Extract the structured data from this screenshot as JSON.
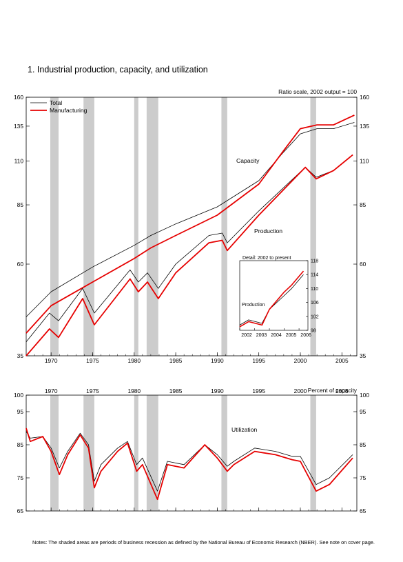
{
  "page": {
    "title": "1.  Industrial production, capacity, and utilization",
    "notes": "Notes: The shaded areas are periods of business recession as defined by the National Bureau of Economic Research (NBER). See note on cover page."
  },
  "chart_data": [
    {
      "type": "line",
      "scale": "log",
      "note": "Ratio scale, 2002 output = 100",
      "ylim": [
        35,
        160
      ],
      "yticks": [
        35,
        60,
        85,
        110,
        135,
        160
      ],
      "xlim": [
        1967.0,
        2006.8
      ],
      "xticks": [
        1970,
        1975,
        1980,
        1985,
        1990,
        1995,
        2000,
        2005
      ],
      "recessions": [
        [
          1969.9,
          1970.9
        ],
        [
          1973.9,
          1975.2
        ],
        [
          1980.0,
          1980.5
        ],
        [
          1981.5,
          1982.9
        ],
        [
          1990.5,
          1991.2
        ],
        [
          2001.2,
          2001.9
        ]
      ],
      "legend": [
        "Total",
        "Manufacturing"
      ],
      "annotations": [
        "Capacity",
        "Production"
      ],
      "colors": {
        "total": "#000000",
        "manufacturing": "#e60000",
        "recession": "#cccccc"
      },
      "series": [
        {
          "name": "Total",
          "role": "capacity",
          "x": [
            1967,
            1970,
            1975,
            1980,
            1982,
            1985,
            1990,
            1995,
            1998,
            2000,
            2002,
            2004,
            2006.5
          ],
          "y": [
            44,
            51,
            59,
            67,
            71,
            76,
            84,
            98,
            116,
            129,
            133,
            133,
            138
          ]
        },
        {
          "name": "Manufacturing",
          "role": "capacity",
          "x": [
            1967,
            1970,
            1975,
            1980,
            1982,
            1985,
            1990,
            1995,
            1998,
            2000,
            2002,
            2004,
            2006.5
          ],
          "y": [
            40,
            47,
            54,
            62,
            66,
            71,
            80,
            96,
            117,
            133,
            136,
            136,
            144
          ]
        },
        {
          "name": "Total",
          "role": "production",
          "x": [
            1967,
            1969.8,
            1970.9,
            1973.8,
            1975.2,
            1979.5,
            1980.5,
            1981.6,
            1982.9,
            1985,
            1989,
            1990.6,
            1991.2,
            1995,
            2000.6,
            2001.9,
            2004,
            2006.3
          ],
          "y": [
            38,
            45,
            43,
            52,
            45,
            58,
            54,
            57,
            52,
            60,
            71,
            72,
            68,
            82,
            106,
            100,
            104,
            114
          ]
        },
        {
          "name": "Manufacturing",
          "role": "production",
          "x": [
            1967,
            1969.8,
            1970.9,
            1973.8,
            1975.2,
            1979.5,
            1980.5,
            1981.6,
            1982.9,
            1985,
            1989,
            1990.6,
            1991.2,
            1995,
            2000.6,
            2001.9,
            2004,
            2006.3
          ],
          "y": [
            35,
            41,
            39,
            49,
            42,
            55,
            51,
            54,
            49,
            57,
            68,
            69,
            65,
            80,
            106,
            99,
            104,
            114
          ]
        }
      ]
    },
    {
      "type": "line",
      "title": "Detail: 2002 to present",
      "ylim": [
        98,
        118
      ],
      "yticks": [
        98,
        102,
        106,
        110,
        114,
        118
      ],
      "xlim": [
        2002.0,
        2006.6
      ],
      "xticks": [
        2002,
        2003,
        2004,
        2005,
        2006
      ],
      "annotations": [
        "Production"
      ],
      "series": [
        {
          "name": "Total",
          "x": [
            2002,
            2002.6,
            2003.5,
            2004,
            2005,
            2005.5,
            2006.3
          ],
          "y": [
            99.5,
            101,
            100,
            104,
            108,
            110,
            114
          ]
        },
        {
          "name": "Manufacturing",
          "x": [
            2002,
            2002.6,
            2003.5,
            2004,
            2005,
            2005.5,
            2006.3
          ],
          "y": [
            99,
            100.5,
            99.5,
            104,
            109,
            111,
            115
          ]
        }
      ]
    },
    {
      "type": "line",
      "note": "Percent of capacity",
      "ylim": [
        65,
        100
      ],
      "yticks": [
        65,
        75,
        85,
        95,
        100
      ],
      "xlim": [
        1967.0,
        2006.8
      ],
      "xticks": [
        1970,
        1975,
        1980,
        1985,
        1990,
        1995,
        2000,
        2005
      ],
      "recessions": [
        [
          1969.9,
          1970.9
        ],
        [
          1973.9,
          1975.2
        ],
        [
          1980.0,
          1980.5
        ],
        [
          1981.5,
          1982.9
        ],
        [
          1990.5,
          1991.2
        ],
        [
          2001.2,
          2001.9
        ]
      ],
      "annotations": [
        "Utilization"
      ],
      "series": [
        {
          "name": "Total",
          "x": [
            1967,
            1967.5,
            1969,
            1970,
            1971,
            1972,
            1973.5,
            1974.5,
            1975.2,
            1976,
            1978,
            1979.2,
            1980.3,
            1981,
            1982.8,
            1984,
            1986,
            1988.5,
            1990,
            1991.2,
            1992,
            1994.5,
            1997,
            1999,
            2000,
            2001.9,
            2003.5,
            2006.3
          ],
          "y": [
            89,
            87,
            87.5,
            84,
            78,
            83,
            88.5,
            85,
            74,
            79,
            84,
            86,
            79,
            81,
            71,
            80,
            79,
            85,
            82,
            78.5,
            80,
            84,
            83,
            81.5,
            81.5,
            73,
            75,
            82
          ]
        },
        {
          "name": "Manufacturing",
          "x": [
            1967,
            1967.5,
            1969,
            1970,
            1971,
            1972,
            1973.5,
            1974.5,
            1975.2,
            1976,
            1978,
            1979.2,
            1980.3,
            1981,
            1982.8,
            1984,
            1986,
            1988.5,
            1990,
            1991.2,
            1992,
            1994.5,
            1997,
            1999,
            2000,
            2001.9,
            2003.5,
            2006.3
          ],
          "y": [
            90,
            86,
            87.5,
            83,
            76,
            82,
            88,
            84,
            72,
            77,
            83,
            85.5,
            77,
            79,
            68.5,
            79,
            78,
            85,
            81,
            77,
            79,
            83,
            82,
            80.5,
            80,
            71,
            73,
            81
          ]
        }
      ]
    }
  ]
}
